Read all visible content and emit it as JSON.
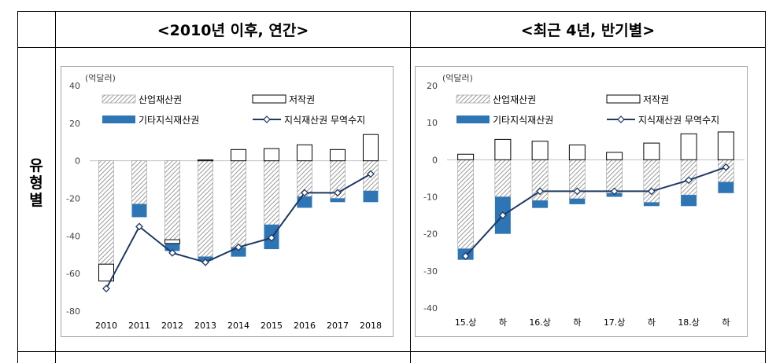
{
  "table": {
    "header_left": "<2010년 이후, 연간>",
    "header_right": "<최근 4년, 반기별>",
    "row_label": [
      "유",
      "형",
      "별"
    ]
  },
  "colors": {
    "industrial": "#d9d9d9",
    "copyright": "#ffffff",
    "other": "#2e75b6",
    "balance_line": "#1f3864"
  },
  "chart_data": [
    {
      "type": "bar",
      "unit_label": "(억달러)",
      "categories": [
        "2010",
        "2011",
        "2012",
        "2013",
        "2014",
        "2015",
        "2016",
        "2017",
        "2018"
      ],
      "ylim": [
        -80,
        40
      ],
      "yticks": [
        -80,
        -60,
        -40,
        -20,
        0,
        20,
        40
      ],
      "legend": [
        "산업재산권",
        "저작권",
        "기타지식재산권",
        "지식재산권 무역수지"
      ],
      "series": [
        {
          "name": "산업재산권",
          "kind": "stacked-bar-hatched",
          "values": [
            -55,
            -23,
            -43,
            -51,
            -46,
            -34,
            -19,
            -20,
            -16
          ]
        },
        {
          "name": "저작권",
          "kind": "stacked-bar-outline",
          "values": [
            0,
            0,
            0,
            0.5,
            6,
            6.5,
            8.5,
            6,
            14
          ]
        },
        {
          "name": "기타지식재산권",
          "kind": "stacked-bar-solid",
          "values": [
            -8,
            -7,
            -5,
            -2,
            -5,
            -13,
            -6,
            -2,
            -6
          ]
        },
        {
          "name": "지식재산권 무역수지",
          "kind": "line",
          "values": [
            -68,
            -35,
            -49,
            -54,
            -46,
            -41,
            -17,
            -17,
            -7
          ]
        }
      ],
      "copyright_stub_below": [
        -65,
        -23,
        -42,
        -51,
        -46,
        -34,
        -19,
        -20,
        -16
      ]
    },
    {
      "type": "bar",
      "unit_label": "(억달러)",
      "categories": [
        "15.상",
        "하",
        "16.상",
        "하",
        "17.상",
        "하",
        "18.상",
        "하"
      ],
      "ylim": [
        -40,
        20
      ],
      "yticks": [
        -40,
        -30,
        -20,
        -10,
        0,
        10,
        20
      ],
      "legend": [
        "산업재산권",
        "저작권",
        "기타지식재산권",
        "지식재산권 무역수지"
      ],
      "series": [
        {
          "name": "산업재산권",
          "kind": "stacked-bar-hatched",
          "values": [
            -24,
            -10,
            -11,
            -10.5,
            -9,
            -11.5,
            -9.5,
            -6
          ]
        },
        {
          "name": "저작권",
          "kind": "stacked-bar-outline",
          "values": [
            1.5,
            5.5,
            5,
            4,
            2,
            4.5,
            7,
            7.5
          ]
        },
        {
          "name": "기타지식재산권",
          "kind": "stacked-bar-solid",
          "values": [
            -3,
            -10,
            -2,
            -1.5,
            -1,
            -1,
            -3,
            -3
          ]
        },
        {
          "name": "지식재산권 무역수지",
          "kind": "line",
          "values": [
            -26,
            -15,
            -8.5,
            -8.5,
            -8.5,
            -8.5,
            -5.5,
            -2
          ]
        }
      ]
    }
  ]
}
